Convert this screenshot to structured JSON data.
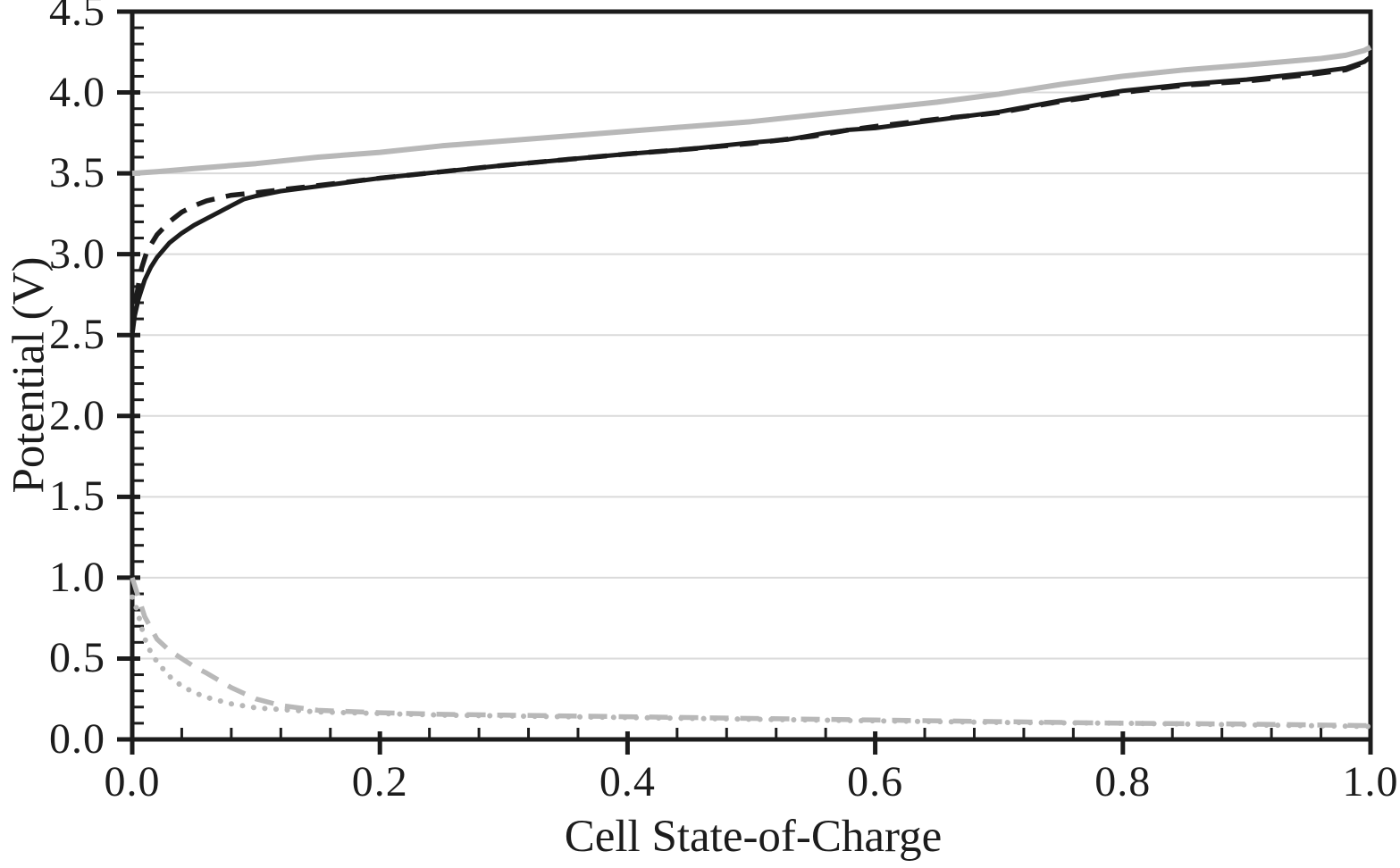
{
  "chart_data": {
    "type": "line",
    "title": "",
    "xlabel": "Cell State-of-Charge",
    "ylabel": "Potential (V)",
    "xlim": [
      0.0,
      1.0
    ],
    "ylim": [
      0.0,
      4.5
    ],
    "x_major_ticks": [
      0.0,
      0.2,
      0.4,
      0.6,
      0.8,
      1.0
    ],
    "x_tick_labels": [
      "0.0",
      "0.2",
      "0.4",
      "0.6",
      "0.8",
      "1.0"
    ],
    "x_minor_step": 0.04,
    "y_major_ticks": [
      0.0,
      0.5,
      1.0,
      1.5,
      2.0,
      2.5,
      3.0,
      3.5,
      4.0,
      4.5
    ],
    "y_tick_labels": [
      "0.0",
      "0.5",
      "1.0",
      "1.5",
      "2.0",
      "2.5",
      "3.0",
      "3.5",
      "4.0",
      "4.5"
    ],
    "y_minor_step": 0.1,
    "grid": "horizontal-major",
    "legend": "none",
    "colors": {
      "black": "#1c1c1c",
      "gray": "#b8b8b8",
      "grid": "#dadada",
      "frame": "#1c1c1c"
    },
    "series": [
      {
        "name": "gray-solid-upper",
        "style": "solid",
        "color": "gray",
        "width": 6,
        "x": [
          0,
          0.02,
          0.05,
          0.1,
          0.15,
          0.2,
          0.25,
          0.3,
          0.35,
          0.4,
          0.45,
          0.5,
          0.55,
          0.6,
          0.65,
          0.7,
          0.75,
          0.8,
          0.85,
          0.9,
          0.93,
          0.96,
          0.98,
          0.995,
          1.0
        ],
        "v": [
          3.5,
          3.51,
          3.53,
          3.56,
          3.6,
          3.63,
          3.67,
          3.7,
          3.73,
          3.76,
          3.79,
          3.82,
          3.86,
          3.9,
          3.94,
          3.99,
          4.05,
          4.1,
          4.14,
          4.17,
          4.19,
          4.21,
          4.23,
          4.26,
          4.28
        ]
      },
      {
        "name": "black-dashed",
        "style": "dashed",
        "color": "black",
        "width": 5.5,
        "x": [
          0,
          0.003,
          0.007,
          0.012,
          0.02,
          0.03,
          0.04,
          0.05,
          0.06,
          0.08,
          0.1,
          0.15,
          0.2,
          0.25,
          0.3,
          0.35,
          0.4,
          0.45,
          0.5,
          0.55,
          0.58,
          0.6,
          0.65,
          0.7,
          0.75,
          0.8,
          0.85,
          0.9,
          0.95,
          0.98,
          1.0
        ],
        "v": [
          2.52,
          2.72,
          2.9,
          3.02,
          3.12,
          3.2,
          3.26,
          3.3,
          3.33,
          3.365,
          3.38,
          3.425,
          3.47,
          3.51,
          3.55,
          3.585,
          3.62,
          3.65,
          3.685,
          3.73,
          3.77,
          3.79,
          3.835,
          3.875,
          3.945,
          4.0,
          4.045,
          4.07,
          4.11,
          4.14,
          4.2
        ]
      },
      {
        "name": "black-solid",
        "style": "solid",
        "color": "black",
        "width": 5,
        "x": [
          0,
          0.002,
          0.005,
          0.01,
          0.015,
          0.02,
          0.03,
          0.04,
          0.05,
          0.06,
          0.07,
          0.08,
          0.09,
          0.1,
          0.12,
          0.15,
          0.2,
          0.25,
          0.3,
          0.35,
          0.4,
          0.45,
          0.5,
          0.53,
          0.56,
          0.58,
          0.6,
          0.65,
          0.7,
          0.75,
          0.8,
          0.85,
          0.9,
          0.95,
          0.98,
          0.995,
          1.0
        ],
        "v": [
          2.5,
          2.62,
          2.72,
          2.84,
          2.92,
          2.98,
          3.07,
          3.13,
          3.18,
          3.22,
          3.26,
          3.3,
          3.34,
          3.36,
          3.39,
          3.42,
          3.47,
          3.51,
          3.55,
          3.585,
          3.62,
          3.65,
          3.69,
          3.71,
          3.75,
          3.77,
          3.78,
          3.83,
          3.88,
          3.95,
          4.01,
          4.05,
          4.08,
          4.12,
          4.15,
          4.19,
          4.22
        ]
      },
      {
        "name": "gray-dashed-lower",
        "style": "dashed",
        "color": "gray",
        "width": 5.5,
        "x": [
          0,
          0.005,
          0.01,
          0.02,
          0.03,
          0.04,
          0.05,
          0.06,
          0.08,
          0.1,
          0.12,
          0.15,
          0.2,
          0.25,
          0.3,
          0.4,
          0.5,
          0.6,
          0.7,
          0.8,
          0.9,
          0.95,
          1.0
        ],
        "v": [
          1.0,
          0.88,
          0.76,
          0.62,
          0.55,
          0.5,
          0.45,
          0.41,
          0.32,
          0.25,
          0.21,
          0.18,
          0.165,
          0.155,
          0.15,
          0.14,
          0.13,
          0.12,
          0.11,
          0.1,
          0.095,
          0.09,
          0.085
        ]
      },
      {
        "name": "gray-dotted-lower",
        "style": "dotted",
        "color": "gray",
        "width": 6,
        "x": [
          0,
          0.004,
          0.008,
          0.012,
          0.02,
          0.03,
          0.04,
          0.05,
          0.06,
          0.08,
          0.1,
          0.12,
          0.15,
          0.2,
          0.25,
          0.3,
          0.4,
          0.5,
          0.6,
          0.7,
          0.8,
          0.9,
          0.95,
          1.0
        ],
        "v": [
          0.88,
          0.8,
          0.68,
          0.58,
          0.48,
          0.39,
          0.33,
          0.29,
          0.26,
          0.22,
          0.195,
          0.185,
          0.17,
          0.16,
          0.15,
          0.145,
          0.135,
          0.125,
          0.115,
          0.105,
          0.1,
          0.09,
          0.085,
          0.08
        ]
      }
    ]
  }
}
